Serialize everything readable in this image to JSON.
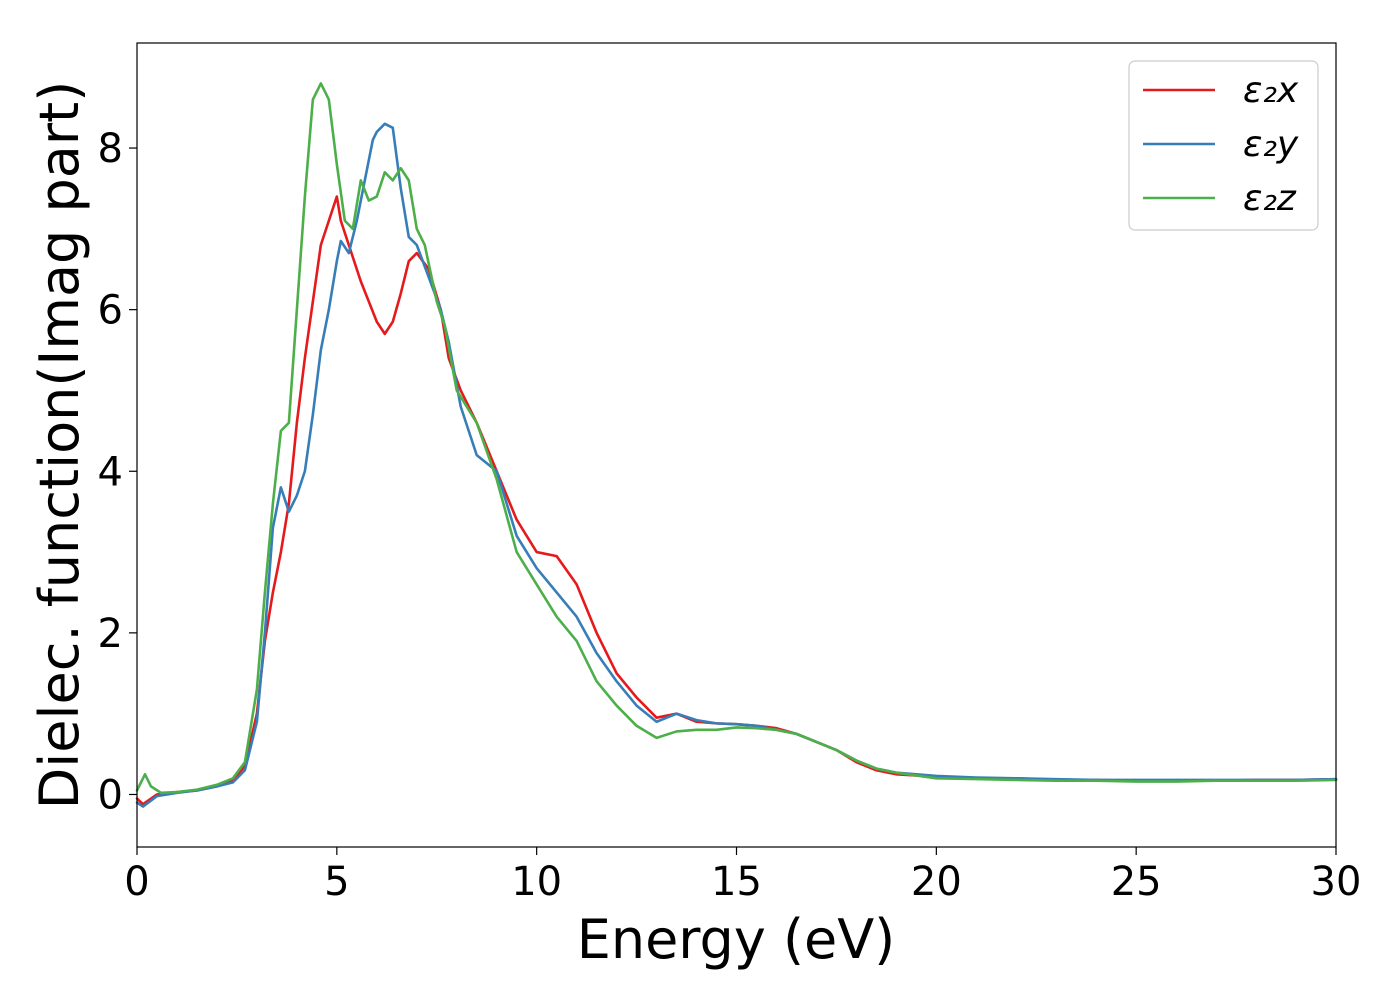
{
  "chart_data": {
    "type": "line",
    "xlabel": "Energy (eV)",
    "ylabel": "Dielec. function(Imag part)",
    "xlim": [
      0,
      30
    ],
    "ylim": [
      -0.65,
      9.3
    ],
    "xticks": [
      "0",
      "5",
      "10",
      "15",
      "20",
      "25",
      "30"
    ],
    "yticks": [
      "0",
      "2",
      "4",
      "6",
      "8"
    ],
    "grid": false,
    "legend_position": "top-right",
    "series": [
      {
        "name": "ε₂x",
        "color": "#e41a1c",
        "x": [
          0.0,
          0.15,
          0.5,
          1.0,
          1.5,
          2.0,
          2.4,
          2.7,
          3.0,
          3.2,
          3.4,
          3.6,
          3.8,
          4.0,
          4.2,
          4.4,
          4.6,
          4.8,
          5.0,
          5.1,
          5.3,
          5.6,
          5.8,
          6.0,
          6.2,
          6.4,
          6.6,
          6.8,
          7.0,
          7.3,
          7.6,
          7.8,
          8.1,
          8.5,
          9.0,
          9.5,
          10.0,
          10.5,
          11.0,
          11.5,
          12.0,
          12.5,
          13.0,
          13.5,
          14.0,
          14.5,
          15.0,
          15.5,
          16.0,
          16.5,
          17.0,
          17.5,
          18.0,
          18.5,
          19.0,
          20.0,
          21.0,
          22.0,
          23.0,
          24.0,
          25.0,
          26.0,
          27.0,
          28.0,
          29.0,
          30.0
        ],
        "y": [
          -0.05,
          -0.12,
          0.0,
          0.03,
          0.05,
          0.1,
          0.18,
          0.35,
          1.0,
          1.9,
          2.5,
          3.0,
          3.6,
          4.6,
          5.4,
          6.1,
          6.8,
          7.1,
          7.4,
          7.1,
          6.8,
          6.35,
          6.1,
          5.85,
          5.7,
          5.85,
          6.2,
          6.6,
          6.7,
          6.5,
          6.0,
          5.4,
          5.0,
          4.6,
          4.0,
          3.4,
          3.0,
          2.95,
          2.6,
          2.0,
          1.5,
          1.2,
          0.95,
          1.0,
          0.9,
          0.88,
          0.87,
          0.85,
          0.82,
          0.75,
          0.65,
          0.55,
          0.4,
          0.3,
          0.25,
          0.22,
          0.2,
          0.2,
          0.18,
          0.18,
          0.17,
          0.17,
          0.17,
          0.18,
          0.18,
          0.19
        ]
      },
      {
        "name": "ε₂y",
        "color": "#377eb8",
        "x": [
          0.0,
          0.15,
          0.5,
          1.0,
          1.5,
          2.0,
          2.4,
          2.7,
          3.0,
          3.2,
          3.4,
          3.6,
          3.8,
          4.0,
          4.2,
          4.4,
          4.6,
          4.8,
          5.0,
          5.1,
          5.3,
          5.5,
          5.7,
          5.9,
          6.0,
          6.2,
          6.4,
          6.6,
          6.8,
          7.0,
          7.3,
          7.6,
          7.8,
          8.1,
          8.5,
          9.0,
          9.5,
          10.0,
          10.5,
          11.0,
          11.5,
          12.0,
          12.5,
          13.0,
          13.5,
          14.0,
          14.5,
          15.0,
          15.5,
          16.0,
          16.5,
          17.0,
          17.5,
          18.0,
          18.5,
          19.0,
          20.0,
          21.0,
          22.0,
          23.0,
          24.0,
          25.0,
          26.0,
          27.0,
          28.0,
          29.0,
          30.0
        ],
        "y": [
          -0.1,
          -0.15,
          -0.02,
          0.02,
          0.05,
          0.1,
          0.15,
          0.3,
          0.9,
          2.0,
          3.3,
          3.8,
          3.5,
          3.7,
          4.0,
          4.7,
          5.5,
          6.0,
          6.6,
          6.85,
          6.7,
          7.1,
          7.6,
          8.1,
          8.2,
          8.3,
          8.25,
          7.5,
          6.9,
          6.8,
          6.4,
          6.0,
          5.6,
          4.8,
          4.2,
          4.0,
          3.2,
          2.8,
          2.5,
          2.2,
          1.75,
          1.4,
          1.1,
          0.9,
          1.0,
          0.92,
          0.88,
          0.87,
          0.85,
          0.8,
          0.75,
          0.65,
          0.55,
          0.42,
          0.32,
          0.27,
          0.23,
          0.21,
          0.2,
          0.19,
          0.18,
          0.18,
          0.18,
          0.18,
          0.18,
          0.18,
          0.19
        ]
      },
      {
        "name": "ε₂z",
        "color": "#4daf4a",
        "x": [
          0.0,
          0.1,
          0.2,
          0.35,
          0.6,
          1.0,
          1.5,
          2.0,
          2.4,
          2.7,
          3.0,
          3.2,
          3.4,
          3.6,
          3.8,
          4.0,
          4.2,
          4.4,
          4.6,
          4.7,
          4.8,
          5.0,
          5.2,
          5.4,
          5.6,
          5.8,
          6.0,
          6.2,
          6.4,
          6.6,
          6.8,
          7.0,
          7.2,
          7.5,
          7.7,
          8.0,
          8.5,
          9.0,
          9.5,
          10.0,
          10.5,
          11.0,
          11.5,
          12.0,
          12.5,
          13.0,
          13.5,
          14.0,
          14.5,
          15.0,
          15.5,
          16.0,
          16.5,
          17.0,
          17.5,
          18.0,
          18.5,
          19.0,
          20.0,
          21.0,
          22.0,
          23.0,
          24.0,
          25.0,
          26.0,
          27.0,
          28.0,
          29.0,
          30.0
        ],
        "y": [
          0.05,
          0.15,
          0.25,
          0.1,
          0.02,
          0.03,
          0.06,
          0.12,
          0.2,
          0.4,
          1.3,
          2.5,
          3.6,
          4.5,
          4.6,
          6.0,
          7.4,
          8.6,
          8.8,
          8.7,
          8.6,
          7.8,
          7.1,
          7.0,
          7.6,
          7.35,
          7.4,
          7.7,
          7.6,
          7.75,
          7.6,
          7.0,
          6.8,
          6.1,
          5.8,
          5.0,
          4.6,
          3.9,
          3.0,
          2.6,
          2.2,
          1.9,
          1.4,
          1.1,
          0.85,
          0.7,
          0.78,
          0.8,
          0.8,
          0.83,
          0.82,
          0.8,
          0.75,
          0.65,
          0.55,
          0.42,
          0.32,
          0.27,
          0.2,
          0.19,
          0.18,
          0.17,
          0.17,
          0.16,
          0.16,
          0.17,
          0.17,
          0.17,
          0.18
        ]
      }
    ]
  }
}
